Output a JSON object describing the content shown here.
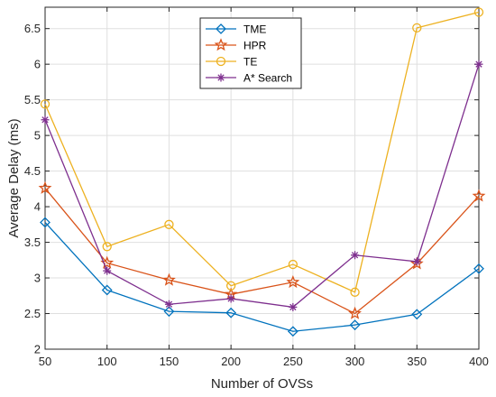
{
  "chart_data": {
    "type": "line",
    "xlabel": "Number of OVSs",
    "ylabel": "Average Delay (ms)",
    "x": [
      50,
      100,
      150,
      200,
      250,
      300,
      350,
      400
    ],
    "xlim": [
      50,
      400
    ],
    "ylim": [
      2,
      6.8
    ],
    "xticks": [
      "50",
      "100",
      "150",
      "200",
      "250",
      "300",
      "350",
      "400"
    ],
    "yticks": [
      "2",
      "2.5",
      "3",
      "3.5",
      "4",
      "4.5",
      "5",
      "5.5",
      "6",
      "6.5"
    ],
    "grid": true,
    "legend_position": "top-center",
    "series": [
      {
        "name": "TME",
        "color": "#0072BD",
        "marker": "diamond",
        "values": [
          3.78,
          2.83,
          2.53,
          2.51,
          2.25,
          2.34,
          2.49,
          3.13
        ]
      },
      {
        "name": "HPR",
        "color": "#D95319",
        "marker": "star",
        "values": [
          4.26,
          3.21,
          2.97,
          2.77,
          2.94,
          2.5,
          3.2,
          4.15
        ]
      },
      {
        "name": "TE",
        "color": "#EDB120",
        "marker": "circle",
        "values": [
          5.44,
          3.44,
          3.75,
          2.89,
          3.19,
          2.8,
          6.51,
          6.73
        ]
      },
      {
        "name": "A* Search",
        "color": "#7E2F8E",
        "marker": "asterisk",
        "values": [
          5.22,
          3.1,
          2.63,
          2.71,
          2.59,
          3.32,
          3.23,
          6.0
        ]
      }
    ]
  }
}
